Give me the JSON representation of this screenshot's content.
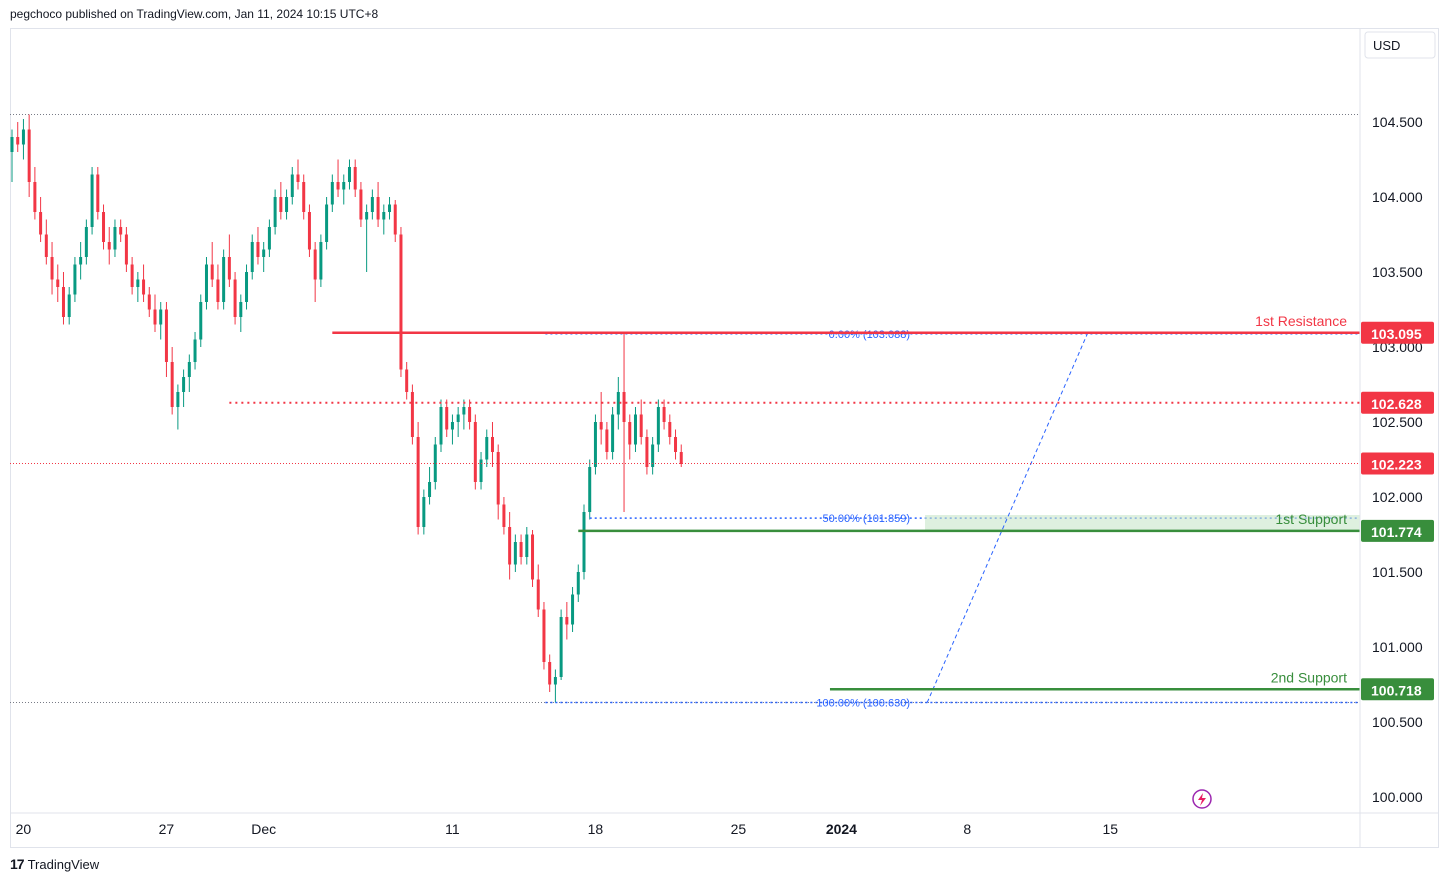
{
  "header": {
    "text": "pegchoco published on TradingView.com, Jan 11, 2024 10:15 UTC+8"
  },
  "footer": {
    "brand": "TradingView",
    "logo_icon": "tradingview-logo-icon"
  },
  "chart_data": {
    "type": "candlestick",
    "currency_label": "USD",
    "y_ticks": [
      "104.500",
      "104.000",
      "103.500",
      "103.000",
      "102.500",
      "102.000",
      "101.500",
      "101.000",
      "100.500",
      "100.000"
    ],
    "y_tick_values": [
      104.5,
      104.0,
      103.5,
      103.0,
      102.5,
      102.0,
      101.5,
      101.0,
      100.5,
      100.0
    ],
    "x_ticks": [
      {
        "label": "20",
        "bold": false,
        "index": 2
      },
      {
        "label": "27",
        "bold": false,
        "index": 27
      },
      {
        "label": "Dec",
        "bold": false,
        "index": 44
      },
      {
        "label": "11",
        "bold": false,
        "index": 77
      },
      {
        "label": "18",
        "bold": false,
        "index": 102
      },
      {
        "label": "25",
        "bold": false,
        "index": 127
      },
      {
        "label": "2024",
        "bold": true,
        "index": 145
      },
      {
        "label": "8",
        "bold": false,
        "index": 167
      },
      {
        "label": "15",
        "bold": false,
        "index": 192
      }
    ],
    "ylim": [
      99.95,
      104.6
    ],
    "levels": [
      {
        "label": "1st Resistance",
        "value": 103.095,
        "tag": "103.095",
        "color": "#f23645",
        "style": "solid",
        "start_index": 56
      },
      {
        "label": "",
        "value": 102.628,
        "tag": "102.628",
        "color": "#f23645",
        "style": "dotted",
        "start_index": 38
      },
      {
        "label": "1st Support",
        "value": 101.774,
        "tag": "101.774",
        "color": "#388e3c",
        "style": "solid",
        "start_index": 99
      },
      {
        "label": "2nd Support",
        "value": 100.718,
        "tag": "100.718",
        "color": "#388e3c",
        "style": "solid",
        "start_index": 143
      }
    ],
    "last_price": {
      "value": 102.223,
      "tag": "102.223",
      "color": "#f23645"
    },
    "fibonacci": [
      {
        "label": "0.00% (103.088)",
        "value": 103.088
      },
      {
        "label": "50.00% (101.859)",
        "value": 101.859
      },
      {
        "label": "100.00% (100.630)",
        "value": 100.63
      }
    ],
    "fib_color": "#2962ff",
    "up_color": "#089981",
    "down_color": "#f23645",
    "ohlc": [
      [
        104.3,
        104.45,
        104.1,
        104.4
      ],
      [
        104.4,
        104.5,
        104.3,
        104.35
      ],
      [
        104.35,
        104.52,
        104.25,
        104.45
      ],
      [
        104.45,
        104.55,
        104.0,
        104.1
      ],
      [
        104.1,
        104.2,
        103.85,
        103.9
      ],
      [
        103.9,
        104.0,
        103.7,
        103.75
      ],
      [
        103.75,
        103.85,
        103.55,
        103.6
      ],
      [
        103.6,
        103.7,
        103.35,
        103.45
      ],
      [
        103.45,
        103.55,
        103.3,
        103.4
      ],
      [
        103.4,
        103.5,
        103.15,
        103.2
      ],
      [
        103.2,
        103.4,
        103.15,
        103.35
      ],
      [
        103.35,
        103.6,
        103.3,
        103.55
      ],
      [
        103.55,
        103.7,
        103.45,
        103.6
      ],
      [
        103.6,
        103.85,
        103.55,
        103.8
      ],
      [
        103.8,
        104.2,
        103.75,
        104.15
      ],
      [
        104.15,
        104.2,
        103.85,
        103.9
      ],
      [
        103.9,
        103.95,
        103.65,
        103.7
      ],
      [
        103.7,
        103.8,
        103.55,
        103.65
      ],
      [
        103.65,
        103.85,
        103.6,
        103.8
      ],
      [
        103.8,
        103.85,
        103.7,
        103.75
      ],
      [
        103.75,
        103.8,
        103.5,
        103.55
      ],
      [
        103.55,
        103.6,
        103.35,
        103.4
      ],
      [
        103.4,
        103.5,
        103.3,
        103.45
      ],
      [
        103.45,
        103.55,
        103.3,
        103.35
      ],
      [
        103.35,
        103.4,
        103.2,
        103.25
      ],
      [
        103.25,
        103.35,
        103.1,
        103.15
      ],
      [
        103.15,
        103.3,
        103.05,
        103.25
      ],
      [
        103.25,
        103.3,
        102.8,
        102.9
      ],
      [
        102.9,
        103.0,
        102.55,
        102.6
      ],
      [
        102.6,
        102.75,
        102.45,
        102.7
      ],
      [
        102.7,
        102.85,
        102.6,
        102.8
      ],
      [
        102.8,
        102.95,
        102.7,
        102.9
      ],
      [
        102.9,
        103.1,
        102.85,
        103.05
      ],
      [
        103.05,
        103.35,
        103.0,
        103.3
      ],
      [
        103.3,
        103.6,
        103.25,
        103.55
      ],
      [
        103.55,
        103.7,
        103.4,
        103.45
      ],
      [
        103.45,
        103.55,
        103.25,
        103.3
      ],
      [
        103.3,
        103.65,
        103.25,
        103.6
      ],
      [
        103.6,
        103.75,
        103.4,
        103.45
      ],
      [
        103.45,
        103.5,
        103.15,
        103.2
      ],
      [
        103.2,
        103.35,
        103.1,
        103.3
      ],
      [
        103.3,
        103.55,
        103.25,
        103.5
      ],
      [
        103.5,
        103.75,
        103.45,
        103.7
      ],
      [
        103.7,
        103.8,
        103.55,
        103.6
      ],
      [
        103.6,
        103.7,
        103.5,
        103.65
      ],
      [
        103.65,
        103.85,
        103.6,
        103.8
      ],
      [
        103.8,
        104.05,
        103.75,
        104.0
      ],
      [
        104.0,
        104.1,
        103.85,
        103.9
      ],
      [
        103.9,
        104.05,
        103.85,
        104.0
      ],
      [
        104.0,
        104.2,
        103.95,
        104.15
      ],
      [
        104.15,
        104.25,
        104.05,
        104.1
      ],
      [
        104.1,
        104.15,
        103.85,
        103.9
      ],
      [
        103.9,
        103.95,
        103.6,
        103.65
      ],
      [
        103.65,
        103.7,
        103.3,
        103.45
      ],
      [
        103.45,
        103.75,
        103.4,
        103.7
      ],
      [
        103.7,
        104.0,
        103.65,
        103.95
      ],
      [
        103.95,
        104.15,
        103.9,
        104.1
      ],
      [
        104.1,
        104.25,
        104.0,
        104.05
      ],
      [
        104.05,
        104.15,
        103.95,
        104.1
      ],
      [
        104.1,
        104.25,
        104.05,
        104.2
      ],
      [
        104.2,
        104.25,
        104.0,
        104.05
      ],
      [
        104.05,
        104.1,
        103.8,
        103.85
      ],
      [
        103.85,
        103.95,
        103.5,
        103.9
      ],
      [
        103.9,
        104.05,
        103.85,
        104.0
      ],
      [
        104.0,
        104.1,
        103.8,
        103.85
      ],
      [
        103.85,
        103.95,
        103.75,
        103.9
      ],
      [
        103.9,
        104.0,
        103.85,
        103.95
      ],
      [
        103.95,
        103.98,
        103.7,
        103.75
      ],
      [
        103.75,
        103.8,
        102.8,
        102.85
      ],
      [
        102.85,
        102.9,
        102.65,
        102.7
      ],
      [
        102.7,
        102.75,
        102.35,
        102.4
      ],
      [
        102.4,
        102.5,
        101.75,
        101.8
      ],
      [
        101.8,
        102.05,
        101.75,
        102.0
      ],
      [
        102.0,
        102.2,
        101.95,
        102.1
      ],
      [
        102.1,
        102.4,
        102.05,
        102.35
      ],
      [
        102.35,
        102.65,
        102.3,
        102.6
      ],
      [
        102.6,
        102.65,
        102.4,
        102.45
      ],
      [
        102.45,
        102.55,
        102.35,
        102.5
      ],
      [
        102.5,
        102.6,
        102.4,
        102.55
      ],
      [
        102.55,
        102.65,
        102.45,
        102.6
      ],
      [
        102.6,
        102.65,
        102.45,
        102.5
      ],
      [
        102.5,
        102.55,
        102.05,
        102.1
      ],
      [
        102.1,
        102.3,
        102.05,
        102.25
      ],
      [
        102.25,
        102.45,
        102.2,
        102.4
      ],
      [
        102.4,
        102.5,
        102.2,
        102.3
      ],
      [
        102.3,
        102.35,
        101.85,
        101.95
      ],
      [
        101.95,
        102.0,
        101.75,
        101.8
      ],
      [
        101.8,
        101.9,
        101.45,
        101.55
      ],
      [
        101.55,
        101.75,
        101.5,
        101.7
      ],
      [
        101.7,
        101.75,
        101.55,
        101.6
      ],
      [
        101.6,
        101.8,
        101.55,
        101.75
      ],
      [
        101.75,
        101.78,
        101.4,
        101.45
      ],
      [
        101.45,
        101.55,
        101.2,
        101.25
      ],
      [
        101.25,
        101.3,
        100.85,
        100.9
      ],
      [
        100.9,
        100.95,
        100.7,
        100.75
      ],
      [
        100.75,
        100.85,
        100.63,
        100.8
      ],
      [
        100.8,
        101.25,
        100.78,
        101.2
      ],
      [
        101.2,
        101.3,
        101.05,
        101.15
      ],
      [
        101.15,
        101.4,
        101.1,
        101.35
      ],
      [
        101.35,
        101.55,
        101.3,
        101.5
      ],
      [
        101.5,
        101.95,
        101.45,
        101.9
      ],
      [
        101.9,
        102.25,
        101.85,
        102.2
      ],
      [
        102.2,
        102.55,
        102.15,
        102.5
      ],
      [
        102.5,
        102.7,
        102.35,
        102.45
      ],
      [
        102.45,
        102.5,
        102.25,
        102.3
      ],
      [
        102.3,
        102.6,
        102.25,
        102.55
      ],
      [
        102.55,
        102.8,
        102.45,
        102.7
      ],
      [
        102.7,
        103.1,
        101.9,
        102.5
      ],
      [
        102.5,
        102.55,
        102.25,
        102.35
      ],
      [
        102.35,
        102.6,
        102.3,
        102.55
      ],
      [
        102.55,
        102.65,
        102.35,
        102.4
      ],
      [
        102.4,
        102.45,
        102.15,
        102.2
      ],
      [
        102.2,
        102.4,
        102.15,
        102.35
      ],
      [
        102.35,
        102.65,
        102.3,
        102.6
      ],
      [
        102.6,
        102.65,
        102.45,
        102.5
      ],
      [
        102.5,
        102.55,
        102.35,
        102.4
      ],
      [
        102.4,
        102.45,
        102.25,
        102.3
      ],
      [
        102.3,
        102.35,
        102.2,
        102.22
      ]
    ]
  }
}
